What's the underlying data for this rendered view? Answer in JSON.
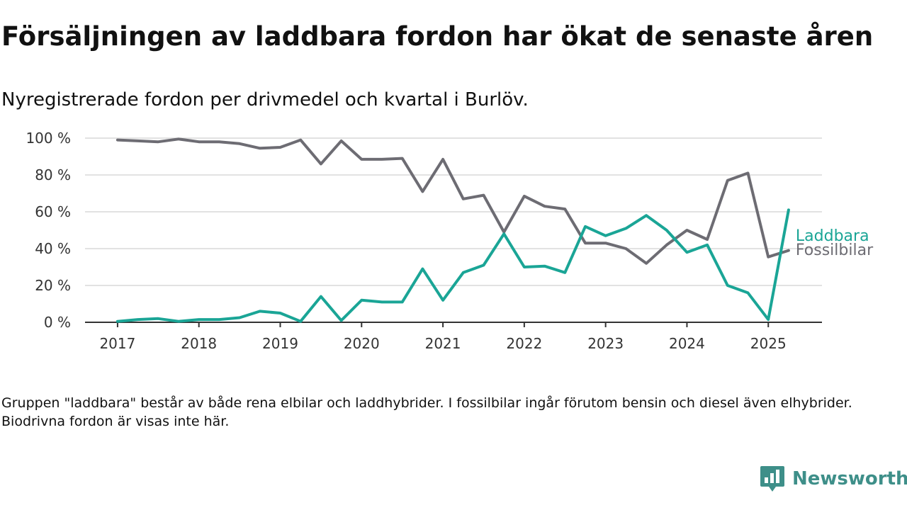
{
  "title": "Försäljningen av laddbara fordon har ökat de senaste åren",
  "subtitle": "Nyregistrerade fordon per drivmedel och kvartal i Burlöv.",
  "footnote": "Gruppen \"laddbara\" består av både rena elbilar och laddhybrider. I fossilbilar ingår förutom bensin och diesel även elhybrider. Biodrivna fordon är visas inte här.",
  "brand": {
    "name": "Newsworthy",
    "icon": "newsworthy-logo-icon",
    "color": "#3e8f89"
  },
  "chart_data": {
    "type": "line",
    "title": "Försäljningen av laddbara fordon har ökat de senaste åren",
    "subtitle": "Nyregistrerade fordon per drivmedel och kvartal i Burlöv.",
    "xlabel": "",
    "ylabel": "",
    "x": [
      2017.0,
      2017.25,
      2017.5,
      2017.75,
      2018.0,
      2018.25,
      2018.5,
      2018.75,
      2019.0,
      2019.25,
      2019.5,
      2019.75,
      2020.0,
      2020.25,
      2020.5,
      2020.75,
      2021.0,
      2021.25,
      2021.5,
      2021.75,
      2022.0,
      2022.25,
      2022.5,
      2022.75,
      2023.0,
      2023.25,
      2023.5,
      2023.75,
      2024.0,
      2024.25,
      2024.5,
      2024.75,
      2025.0,
      2025.25
    ],
    "xticks": [
      2017,
      2018,
      2019,
      2020,
      2021,
      2022,
      2023,
      2024,
      2025
    ],
    "xtick_labels": [
      "2017",
      "2018",
      "2019",
      "2020",
      "2021",
      "2022",
      "2023",
      "2024",
      "2025"
    ],
    "xlim": [
      2016.6,
      2025.66
    ],
    "ylim": [
      0,
      100
    ],
    "yticks": [
      0,
      20,
      40,
      60,
      80,
      100
    ],
    "ytick_labels": [
      "0 %",
      "20 %",
      "40 %",
      "60 %",
      "80 %",
      "100 %"
    ],
    "grid": "horizontal",
    "legend": "end-of-line labels",
    "series": [
      {
        "name": "Laddbara",
        "color": "#1aa596",
        "values": [
          0.5,
          1.5,
          2,
          0.5,
          1.5,
          1.5,
          2.5,
          6,
          5,
          0.5,
          14,
          1,
          12,
          11,
          11,
          29,
          12,
          27,
          31,
          48,
          30,
          30.5,
          27,
          52,
          47,
          51,
          58,
          50,
          38,
          42,
          20,
          16,
          1.5,
          61
        ]
      },
      {
        "name": "Fossilbilar",
        "color": "#6d6c73",
        "values": [
          99,
          98.5,
          98,
          99.5,
          98,
          98,
          97,
          94.5,
          95,
          99,
          86,
          98.5,
          88.5,
          88.5,
          89,
          71,
          88.5,
          67,
          69,
          49,
          68.5,
          63,
          61.5,
          43,
          43,
          40,
          32,
          42,
          50,
          45,
          77,
          81,
          35.5,
          39
        ]
      }
    ]
  }
}
